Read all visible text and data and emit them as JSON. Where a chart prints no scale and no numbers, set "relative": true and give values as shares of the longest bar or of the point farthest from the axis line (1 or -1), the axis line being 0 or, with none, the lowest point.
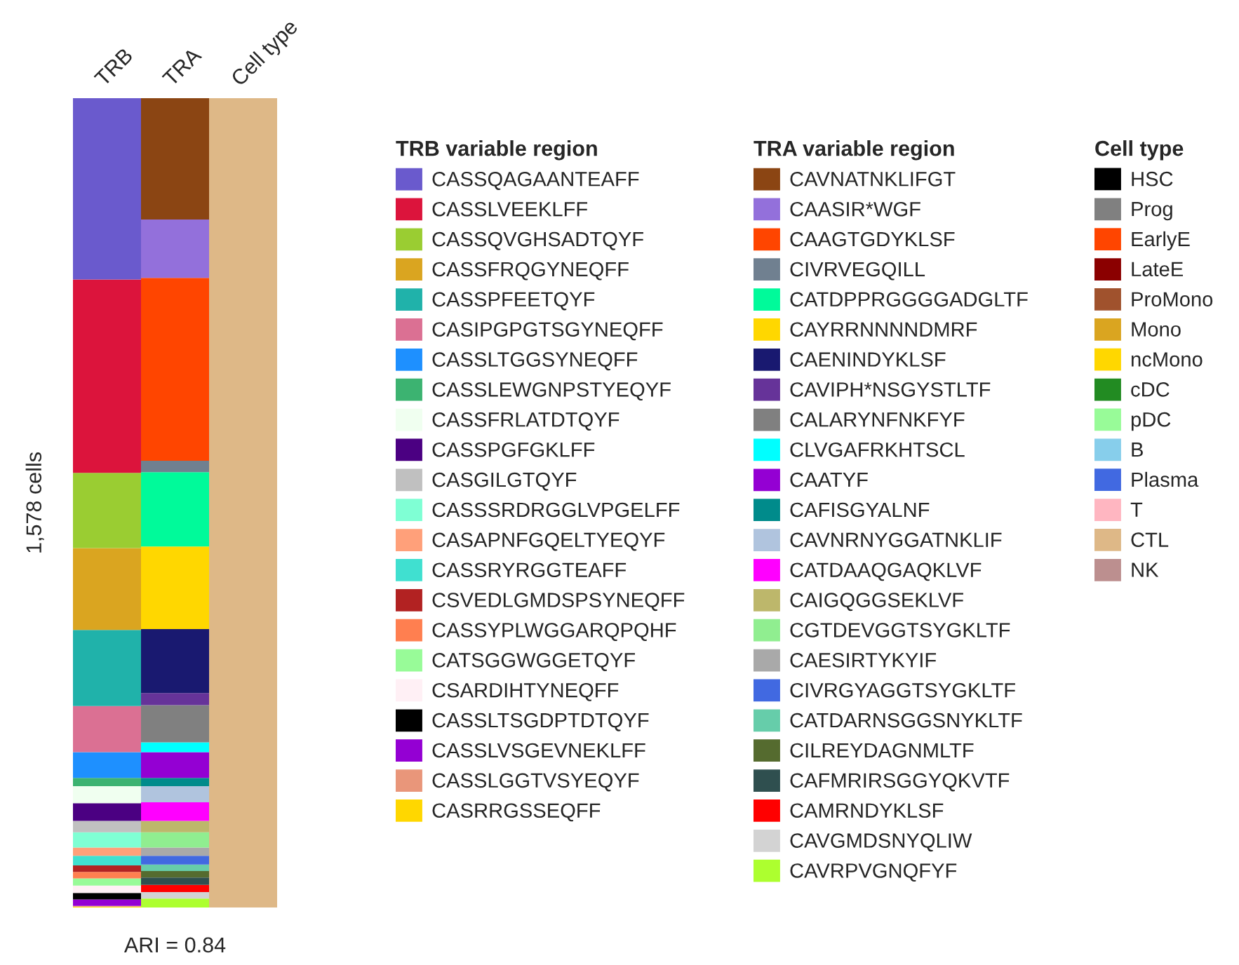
{
  "chart_data": [
    {
      "type": "bar",
      "relative": true,
      "stacked": true,
      "categories": [
        "TRB"
      ],
      "ylabel": "1,578 cells",
      "legend_title": "TRB variable region",
      "legend": "right",
      "annotations": [
        "ARI = 0.84"
      ],
      "series": [
        {
          "name": "CASRRGSSEQFF",
          "color": "#ffd700",
          "values": [
            0.001
          ]
        },
        {
          "name": "CASSLGGTVSYEQYF",
          "color": "#e9967a",
          "values": [
            0.001
          ]
        },
        {
          "name": "CASSLVSGEVNEKLFF",
          "color": "#9400d3",
          "values": [
            0.008
          ]
        },
        {
          "name": "CASSLTSGDPTDTQYF",
          "color": "#000000",
          "values": [
            0.008
          ]
        },
        {
          "name": "CSARDIHTYNEQFF",
          "color": "#fff0f5",
          "values": [
            0.009
          ]
        },
        {
          "name": "CATSGGWGGETQYF",
          "color": "#98fb98",
          "values": [
            0.009
          ]
        },
        {
          "name": "CASSYPLWGGARQPQHF",
          "color": "#ff7f50",
          "values": [
            0.008
          ]
        },
        {
          "name": "CSVEDLGMDSPSYNEQFF",
          "color": "#b22222",
          "values": [
            0.008
          ]
        },
        {
          "name": "CASSRYRGGTEAFF",
          "color": "#40e0d0",
          "values": [
            0.012
          ]
        },
        {
          "name": "CASAPNFGQELTYEQYF",
          "color": "#ffa07a",
          "values": [
            0.01
          ]
        },
        {
          "name": "CASSSRDRGGLVPGELFF",
          "color": "#7fffd4",
          "values": [
            0.019
          ]
        },
        {
          "name": "CASGILGTQYF",
          "color": "#c0c0c0",
          "values": [
            0.014
          ]
        },
        {
          "name": "CASSPGFGKLFF",
          "color": "#4b0082",
          "values": [
            0.022
          ]
        },
        {
          "name": "CASSFRLATDTQYF",
          "color": "#f0fff0",
          "values": [
            0.021
          ]
        },
        {
          "name": "CASSLEWGNPSTYEQYF",
          "color": "#3cb371",
          "values": [
            0.01
          ]
        },
        {
          "name": "CASSLTGGSYNEQFF",
          "color": "#1e90ff",
          "values": [
            0.032
          ]
        },
        {
          "name": "CASIPGPGTSGYNEQFF",
          "color": "#db7093",
          "values": [
            0.057
          ]
        },
        {
          "name": "CASSPFEETQYF",
          "color": "#20b2aa",
          "values": [
            0.094
          ]
        },
        {
          "name": "CASSFRQGYNEQFF",
          "color": "#daa520",
          "values": [
            0.101
          ]
        },
        {
          "name": "CASSQVGHSADTQYF",
          "color": "#9acd32",
          "values": [
            0.093
          ]
        },
        {
          "name": "CASSLVEEKLFF",
          "color": "#dc143c",
          "values": [
            0.239
          ]
        },
        {
          "name": "CASSQAGAANTEAFF",
          "color": "#6a5acd",
          "values": [
            0.224
          ]
        }
      ]
    },
    {
      "type": "bar",
      "relative": true,
      "stacked": true,
      "categories": [
        "TRA"
      ],
      "legend_title": "TRA variable region",
      "legend": "right",
      "series": [
        {
          "name": "CAVRPVGNQFYF",
          "color": "#adff2f",
          "values": [
            0.011
          ]
        },
        {
          "name": "CAVGMDSNYQLIW",
          "color": "#d3d3d3",
          "values": [
            0.008
          ]
        },
        {
          "name": "CAMRNDYKLSF",
          "color": "#ff0000",
          "values": [
            0.009
          ]
        },
        {
          "name": "CAFMRIRSGGYQKVTF",
          "color": "#2f4f4f",
          "values": [
            0.009
          ]
        },
        {
          "name": "CILREYDAGNMLTF",
          "color": "#556b2f",
          "values": [
            0.008
          ]
        },
        {
          "name": "CATDARNSGGSNYKLTF",
          "color": "#66cdaa",
          "values": [
            0.008
          ]
        },
        {
          "name": "CIVRGYAGGTSYGKLTF",
          "color": "#4169e1",
          "values": [
            0.011
          ]
        },
        {
          "name": "CAESIRTYKYIF",
          "color": "#a9a9a9",
          "values": [
            0.01
          ]
        },
        {
          "name": "CGTDEVGGTSYGKLTF",
          "color": "#90ee90",
          "values": [
            0.019
          ]
        },
        {
          "name": "CAIGQGGSEKLVF",
          "color": "#bdb76b",
          "values": [
            0.014
          ]
        },
        {
          "name": "CATDAAQGAQKLVF",
          "color": "#ff00ff",
          "values": [
            0.023
          ]
        },
        {
          "name": "CAVNRNYGGATNKLIF",
          "color": "#b0c4de",
          "values": [
            0.02
          ]
        },
        {
          "name": "CAFISGYALNF",
          "color": "#008b8b",
          "values": [
            0.01
          ]
        },
        {
          "name": "CAATYF",
          "color": "#9400d3",
          "values": [
            0.032
          ]
        },
        {
          "name": "CLVGAFRKHTSCL",
          "color": "#00ffff",
          "values": [
            0.012
          ]
        },
        {
          "name": "CALARYNFNKFYF",
          "color": "#808080",
          "values": [
            0.046
          ]
        },
        {
          "name": "CAVIPH*NSGYSTLTF",
          "color": "#663399",
          "values": [
            0.015
          ]
        },
        {
          "name": "CAENINDYKLSF",
          "color": "#191970",
          "values": [
            0.079
          ]
        },
        {
          "name": "CAYRRNNNNDMRF",
          "color": "#ffd700",
          "values": [
            0.102
          ]
        },
        {
          "name": "CATDPPRGGGGADGLTF",
          "color": "#00fa9a",
          "values": [
            0.092
          ]
        },
        {
          "name": "CIVRVEGQILL",
          "color": "#708090",
          "values": [
            0.014
          ]
        },
        {
          "name": "CAAGTGDYKLSF",
          "color": "#ff4500",
          "values": [
            0.226
          ]
        },
        {
          "name": "CAASIR*WGF",
          "color": "#9370db",
          "values": [
            0.072
          ]
        },
        {
          "name": "CAVNATNKLIFGT",
          "color": "#8b4513",
          "values": [
            0.15
          ]
        }
      ]
    },
    {
      "type": "bar",
      "relative": true,
      "stacked": true,
      "categories": [
        "Cell type"
      ],
      "legend_title": "Cell type",
      "legend": "right",
      "series": [
        {
          "name": "NK",
          "color": "#bc8f8f",
          "values": [
            null
          ]
        },
        {
          "name": "CTL",
          "color": "#deb887",
          "values": [
            1
          ]
        },
        {
          "name": "T",
          "color": "#ffb6c1",
          "values": [
            null
          ]
        },
        {
          "name": "Plasma",
          "color": "#4169e1",
          "values": [
            null
          ]
        },
        {
          "name": "B",
          "color": "#87ceeb",
          "values": [
            null
          ]
        },
        {
          "name": "pDC",
          "color": "#98fb98",
          "values": [
            null
          ]
        },
        {
          "name": "cDC",
          "color": "#228b22",
          "values": [
            null
          ]
        },
        {
          "name": "ncMono",
          "color": "#ffd700",
          "values": [
            null
          ]
        },
        {
          "name": "Mono",
          "color": "#daa520",
          "values": [
            null
          ]
        },
        {
          "name": "ProMono",
          "color": "#a0522d",
          "values": [
            null
          ]
        },
        {
          "name": "LateE",
          "color": "#8b0000",
          "values": [
            null
          ]
        },
        {
          "name": "EarlyE",
          "color": "#ff4500",
          "values": [
            null
          ]
        },
        {
          "name": "Prog",
          "color": "#808080",
          "values": [
            null
          ]
        },
        {
          "name": "HSC",
          "color": "#000000",
          "values": [
            null
          ]
        }
      ]
    }
  ]
}
